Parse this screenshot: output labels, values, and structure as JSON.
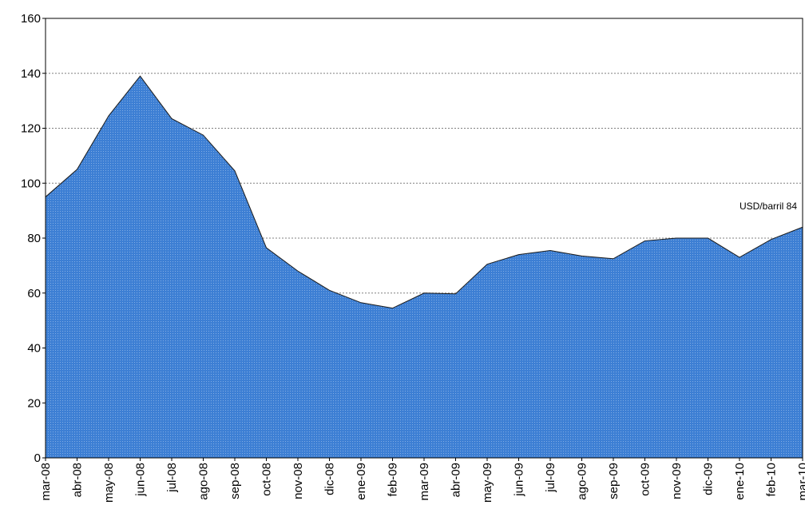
{
  "chart_data": {
    "type": "area",
    "categories": [
      "mar-08",
      "abr-08",
      "may-08",
      "jun-08",
      "jul-08",
      "ago-08",
      "sep-08",
      "oct-08",
      "nov-08",
      "dic-08",
      "ene-09",
      "feb-09",
      "mar-09",
      "abr-09",
      "may-09",
      "jun-09",
      "jul-09",
      "ago-09",
      "sep-09",
      "oct-09",
      "nov-09",
      "dic-09",
      "ene-10",
      "feb-10",
      "mar-10"
    ],
    "values": [
      95,
      105,
      124.5,
      139,
      123.5,
      117.5,
      104.5,
      76.5,
      68,
      61,
      56.5,
      54.5,
      60,
      59.7,
      70.5,
      74,
      75.5,
      73.5,
      72.5,
      79,
      80,
      80,
      73,
      79.5,
      84
    ],
    "color": "#3d7fd4",
    "annotation": "USD/barril 84",
    "ylim": [
      0,
      160
    ],
    "yticks": [
      0,
      20,
      40,
      60,
      80,
      100,
      120,
      140,
      160
    ],
    "grid": true
  }
}
